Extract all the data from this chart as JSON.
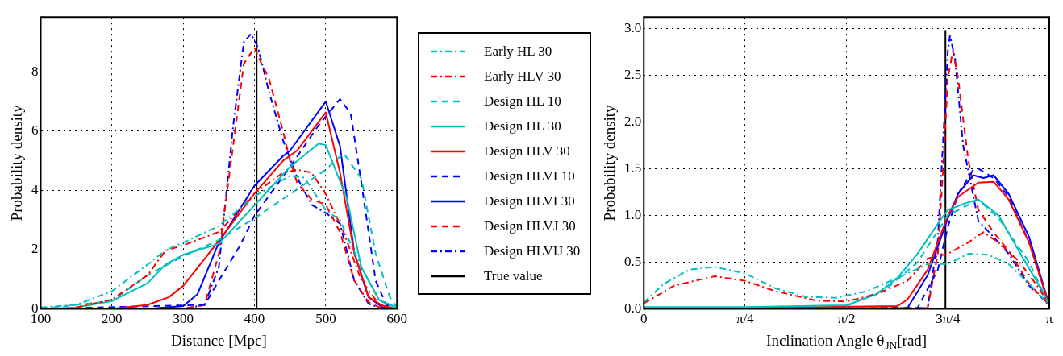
{
  "chart_data": [
    {
      "type": "line",
      "xlabel": "Distance [Mpc]",
      "ylabel": "Probability density",
      "xlim": [
        100,
        600
      ],
      "xticks": [
        100,
        200,
        300,
        400,
        500,
        600
      ],
      "ylim": [
        0,
        9.85
      ],
      "yticks": [
        0,
        2,
        4,
        6,
        8
      ],
      "grid": true,
      "legend": "right",
      "marker": "none",
      "series": [
        {
          "name": "Early HL 30",
          "color": "#00bfbf",
          "line_style": "dotted",
          "x": [
            100,
            150,
            200,
            250,
            275,
            300,
            350,
            400,
            450,
            470,
            500,
            520,
            550,
            575,
            600
          ],
          "values": [
            0.05,
            0.14,
            0.6,
            1.5,
            1.98,
            2.24,
            2.8,
            3.8,
            4.5,
            4.43,
            3.34,
            3.0,
            1.4,
            0.3,
            0
          ]
        },
        {
          "name": "Early HLV 30",
          "color": "#ff0000",
          "line_style": "dotted",
          "x": [
            150,
            200,
            250,
            275,
            300,
            350,
            400,
            440,
            460,
            480,
            500,
            525,
            550,
            575,
            600
          ],
          "values": [
            0.05,
            0.32,
            1.14,
            1.97,
            2.15,
            2.6,
            3.9,
            4.6,
            4.7,
            4.6,
            3.88,
            2.6,
            0.96,
            0.15,
            0
          ]
        },
        {
          "name": "Design HL 10",
          "color": "#00bfbf",
          "line_style": "dashed",
          "x": [
            100,
            150,
            200,
            250,
            300,
            350,
            400,
            450,
            500,
            525,
            550,
            570,
            590,
            600
          ],
          "values": [
            0,
            0.14,
            0.27,
            1.14,
            1.78,
            2.33,
            3.06,
            3.88,
            4.7,
            5.26,
            4.4,
            1.87,
            0.4,
            0.05
          ]
        },
        {
          "name": "Design HL 30",
          "color": "#00bfbf",
          "line_style": "solid",
          "x": [
            100,
            150,
            200,
            250,
            275,
            300,
            350,
            400,
            450,
            490,
            500,
            530,
            550,
            575,
            600
          ],
          "values": [
            0,
            0.05,
            0.27,
            0.87,
            1.5,
            1.83,
            2.2,
            3.5,
            4.8,
            5.58,
            5.53,
            3.7,
            1.4,
            0.3,
            0.05
          ]
        },
        {
          "name": "Design HLV 30",
          "color": "#ff0000",
          "line_style": "solid",
          "x": [
            100,
            200,
            250,
            280,
            300,
            350,
            400,
            440,
            460,
            500,
            520,
            540,
            560,
            580,
            600
          ],
          "values": [
            0,
            0,
            0.14,
            0.4,
            0.78,
            2.3,
            3.9,
            5.0,
            5.35,
            6.63,
            4.6,
            1.9,
            0.4,
            0.1,
            0
          ]
        },
        {
          "name": "Design HLVI 10",
          "color": "#0000ff",
          "line_style": "dashed",
          "x": [
            100,
            330,
            350,
            380,
            400,
            450,
            490,
            520,
            535,
            550,
            570,
            585,
            600
          ],
          "values": [
            0,
            0.14,
            0.96,
            2.15,
            3.15,
            4.8,
            6.2,
            7.08,
            6.6,
            4.25,
            0.96,
            0.14,
            0
          ]
        },
        {
          "name": "Design HLVI 30",
          "color": "#0000ff",
          "line_style": "solid",
          "x": [
            100,
            250,
            300,
            320,
            350,
            400,
            440,
            450,
            500,
            520,
            540,
            560,
            580,
            600
          ],
          "values": [
            0,
            0,
            0.1,
            0.5,
            2.24,
            4.16,
            5.16,
            5.35,
            7.0,
            5.5,
            1.9,
            0.4,
            0.05,
            0
          ]
        },
        {
          "name": "Design HLVJ 30",
          "color": "#ff0000",
          "line_style": "dashed",
          "x": [
            100,
            300,
            330,
            350,
            370,
            385,
            400,
            410,
            420,
            440,
            450,
            460,
            480,
            500,
            520,
            540,
            560,
            580,
            600
          ],
          "values": [
            0,
            0,
            0.14,
            1.87,
            5.5,
            8.27,
            8.82,
            8.27,
            7.8,
            6.0,
            5.0,
            4.25,
            3.7,
            3.52,
            2.6,
            0.96,
            0.23,
            0,
            0
          ]
        },
        {
          "name": "Design HLVIJ 30",
          "color": "#0000ff",
          "line_style": "dotted",
          "x": [
            100,
            300,
            330,
            350,
            370,
            385,
            395,
            405,
            420,
            440,
            460,
            480,
            500,
            520,
            540,
            560,
            580,
            600
          ],
          "values": [
            0,
            0,
            0.14,
            1.42,
            6.17,
            9.0,
            9.28,
            8.82,
            7.36,
            5.7,
            4.43,
            3.52,
            3.24,
            2.88,
            0.96,
            0.18,
            0,
            0
          ]
        },
        {
          "name": "True value",
          "color": "#000000",
          "line_style": "solid",
          "x": [
            403,
            403
          ],
          "values": [
            0,
            9.4
          ]
        }
      ]
    },
    {
      "type": "line",
      "xlabel": "Inclination Angle θ$_{JN}$[rad]",
      "ylabel": "Probability density",
      "xlim": [
        0,
        3.1416
      ],
      "xticks": [
        {
          "value": 0,
          "label": "0"
        },
        {
          "value": 0.7854,
          "label": "π/4"
        },
        {
          "value": 1.5708,
          "label": "π/2"
        },
        {
          "value": 2.3562,
          "label": "3π/4"
        },
        {
          "value": 3.1416,
          "label": "π"
        }
      ],
      "ylim": [
        0,
        3.12
      ],
      "yticks": [
        {
          "value": 0,
          "label": "0.0"
        },
        {
          "value": 0.5,
          "label": "0.5"
        },
        {
          "value": 1,
          "label": "1.0"
        },
        {
          "value": 1.5,
          "label": "1.5"
        },
        {
          "value": 2,
          "label": "2.0"
        },
        {
          "value": 2.5,
          "label": "2.5"
        },
        {
          "value": 3,
          "label": "3.0"
        }
      ],
      "grid": true,
      "marker": "none",
      "series": [
        {
          "color": "#00bfbf",
          "line_style": "dotted",
          "x": [
            0,
            0.157,
            0.353,
            0.55,
            0.785,
            1.021,
            1.257,
            1.492,
            1.728,
            1.963,
            2.199,
            2.356,
            2.513,
            2.67,
            2.827,
            2.985,
            3.1416
          ],
          "values": [
            0.07,
            0.27,
            0.42,
            0.45,
            0.38,
            0.22,
            0.13,
            0.12,
            0.19,
            0.33,
            0.48,
            0.48,
            0.59,
            0.58,
            0.48,
            0.27,
            0.04
          ]
        },
        {
          "color": "#ff0000",
          "line_style": "dotted",
          "x": [
            0,
            0.236,
            0.55,
            0.785,
            1.021,
            1.335,
            1.571,
            1.806,
            2.042,
            2.199,
            2.356,
            2.513,
            2.631,
            2.749,
            2.906,
            3.063,
            3.1416
          ],
          "values": [
            0.06,
            0.25,
            0.35,
            0.3,
            0.19,
            0.09,
            0.08,
            0.16,
            0.3,
            0.54,
            0.59,
            0.71,
            0.82,
            0.71,
            0.51,
            0.22,
            0.04
          ]
        },
        {
          "color": "#00bfbf",
          "line_style": "dashed",
          "x": [
            1.571,
            1.728,
            1.885,
            2.121,
            2.356,
            2.592,
            2.749,
            2.985,
            3.1416
          ],
          "values": [
            0.03,
            0.13,
            0.22,
            0.5,
            1.0,
            1.17,
            0.97,
            0.5,
            0.04
          ]
        },
        {
          "color": "#00bfbf",
          "line_style": "solid",
          "x": [
            0,
            0.785,
            1.571,
            1.806,
            1.963,
            2.121,
            2.278,
            2.356,
            2.513,
            2.592,
            2.749,
            2.906,
            3.063,
            3.1416
          ],
          "values": [
            0.02,
            0.02,
            0.04,
            0.16,
            0.33,
            0.59,
            0.91,
            1.06,
            1.14,
            1.17,
            1.0,
            0.62,
            0.25,
            0.04
          ]
        },
        {
          "color": "#ff0000",
          "line_style": "solid",
          "x": [
            0,
            1.963,
            2.042,
            2.199,
            2.356,
            2.435,
            2.592,
            2.71,
            2.827,
            2.985,
            3.1416
          ],
          "values": [
            0,
            0.03,
            0.1,
            0.42,
            1.0,
            1.2,
            1.35,
            1.36,
            1.17,
            0.71,
            0.04
          ]
        },
        {
          "color": "#0000ff",
          "line_style": "dashed",
          "x": [
            0,
            2.121,
            2.278,
            2.356,
            2.435,
            2.553,
            2.592,
            2.71,
            2.827,
            2.985,
            3.1416
          ],
          "values": [
            0,
            0.01,
            0.42,
            0.88,
            1.23,
            1.49,
            1.5,
            1.4,
            1.2,
            0.71,
            0.04
          ]
        },
        {
          "color": "#0000ff",
          "line_style": "solid",
          "x": [
            0,
            2.042,
            2.199,
            2.356,
            2.435,
            2.553,
            2.631,
            2.71,
            2.827,
            2.985,
            3.1416
          ],
          "values": [
            0,
            0.01,
            0.36,
            0.97,
            1.23,
            1.43,
            1.4,
            1.43,
            1.23,
            0.77,
            0.04
          ]
        },
        {
          "color": "#ff0000",
          "line_style": "dashed",
          "x": [
            0,
            2.199,
            2.278,
            2.317,
            2.356,
            2.395,
            2.435,
            2.513,
            2.592,
            2.71,
            2.827,
            2.985,
            3.1416
          ],
          "values": [
            0,
            0.01,
            0.59,
            1.46,
            2.47,
            2.76,
            2.47,
            1.6,
            1.06,
            0.82,
            0.62,
            0.27,
            0.04
          ]
        },
        {
          "color": "#0000ff",
          "line_style": "dotted",
          "x": [
            0,
            2.199,
            2.278,
            2.317,
            2.356,
            2.372,
            2.411,
            2.474,
            2.592,
            2.71,
            2.827,
            2.985,
            3.1416
          ],
          "values": [
            0,
            0.01,
            0.74,
            1.75,
            2.76,
            2.92,
            2.68,
            1.75,
            0.94,
            0.77,
            0.59,
            0.25,
            0.04
          ]
        },
        {
          "color": "#000000",
          "line_style": "solid",
          "x": [
            2.337,
            2.337
          ],
          "values": [
            0,
            2.98
          ]
        }
      ]
    }
  ]
}
